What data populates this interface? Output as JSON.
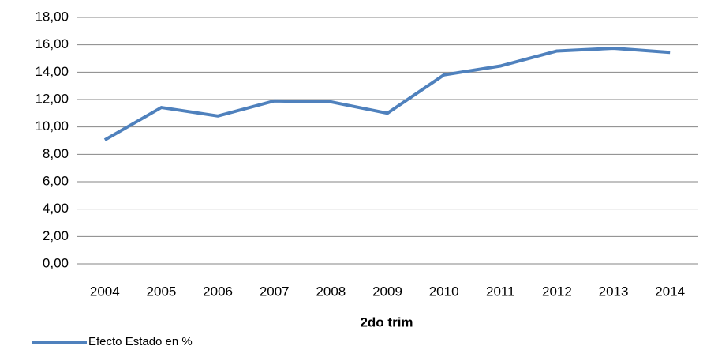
{
  "chart_data": {
    "type": "line",
    "x_label": "2do trim",
    "categories": [
      "2004",
      "2005",
      "2006",
      "2007",
      "2008",
      "2009",
      "2010",
      "2011",
      "2012",
      "2013",
      "2014"
    ],
    "series": [
      {
        "name": "Efecto Estado en %",
        "color": "#4f81bd",
        "values": [
          9.05,
          11.42,
          10.8,
          11.9,
          11.83,
          11.0,
          13.8,
          14.45,
          15.55,
          15.75,
          15.45
        ]
      }
    ],
    "ylim": [
      0,
      18
    ],
    "yticks": [
      {
        "value": 0,
        "label": "0,00"
      },
      {
        "value": 2,
        "label": "2,00"
      },
      {
        "value": 4,
        "label": "4,00"
      },
      {
        "value": 6,
        "label": "6,00"
      },
      {
        "value": 8,
        "label": "8,00"
      },
      {
        "value": 10,
        "label": "10,00"
      },
      {
        "value": 12,
        "label": "12,00"
      },
      {
        "value": 14,
        "label": "14,00"
      },
      {
        "value": 16,
        "label": "16,00"
      },
      {
        "value": 18,
        "label": "18,00"
      }
    ],
    "grid": true,
    "legend": "bottom-left"
  }
}
